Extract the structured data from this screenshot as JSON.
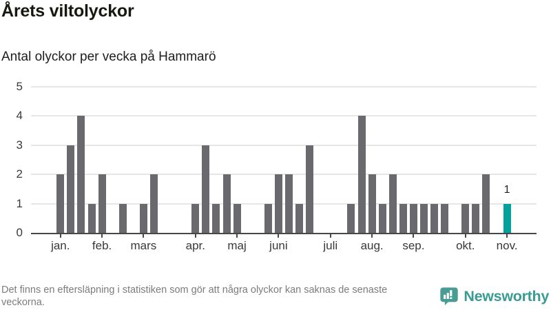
{
  "header": {
    "title": "Årets viltolyckor",
    "subtitle": "Antal olyckor per vecka på Hammarö"
  },
  "chart_data": {
    "type": "bar",
    "title": "Årets viltolyckor",
    "subtitle": "Antal olyckor per vecka på Hammarö",
    "xlabel": "",
    "ylabel": "",
    "ylim": [
      0,
      5
    ],
    "y_ticks": [
      0,
      1,
      2,
      3,
      4,
      5
    ],
    "grid": true,
    "legend": "none",
    "x_unit": "vecka",
    "values": [
      2,
      3,
      4,
      1,
      2,
      0,
      1,
      0,
      1,
      2,
      0,
      0,
      0,
      1,
      3,
      1,
      2,
      1,
      0,
      0,
      1,
      2,
      2,
      1,
      3,
      0,
      0,
      0,
      1,
      4,
      2,
      1,
      2,
      1,
      1,
      1,
      1,
      1,
      0,
      1,
      1,
      2,
      0,
      1
    ],
    "month_ticks": [
      {
        "label": "jan.",
        "week": 0
      },
      {
        "label": "feb.",
        "week": 4
      },
      {
        "label": "mars",
        "week": 8
      },
      {
        "label": "apr.",
        "week": 13
      },
      {
        "label": "maj",
        "week": 17
      },
      {
        "label": "juni",
        "week": 21
      },
      {
        "label": "juli",
        "week": 26
      },
      {
        "label": "aug.",
        "week": 30
      },
      {
        "label": "sep.",
        "week": 34
      },
      {
        "label": "okt.",
        "week": 39
      },
      {
        "label": "nov.",
        "week": 43
      }
    ],
    "bar_color": "#69696e",
    "grid_color": "#e6e6e6",
    "axis_color": "#47474a",
    "highlight": {
      "week": 43,
      "value": 1,
      "label": "1",
      "color": "#00a29b"
    }
  },
  "footer": {
    "note": "Det finns en eftersläpning i statistiken som gör att några olyckor kan saknas de senaste veckorna."
  },
  "branding": {
    "name": "Newsworthy",
    "color": "#3a9b95",
    "icon": "newsworthy-speech-bubble-chart-icon"
  }
}
